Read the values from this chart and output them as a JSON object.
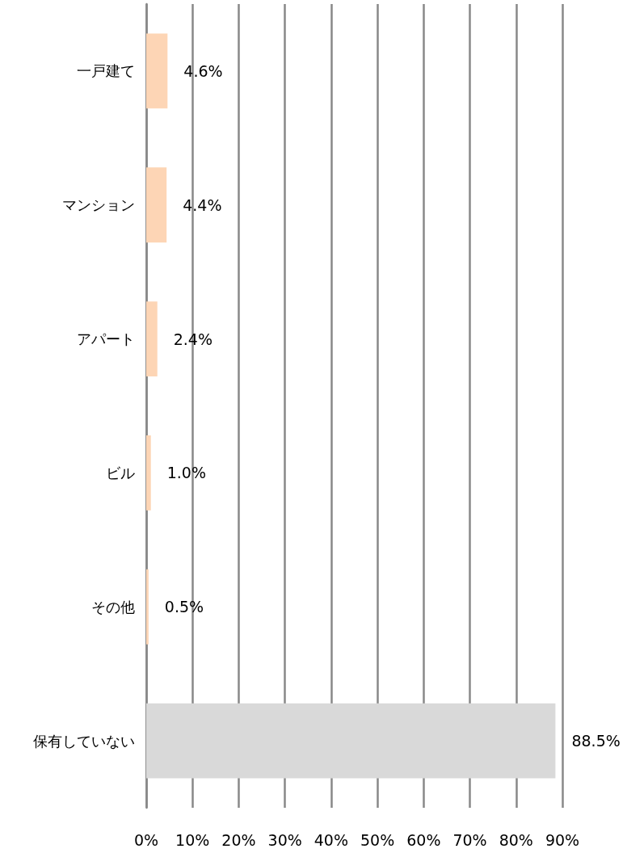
{
  "chart_data": {
    "type": "bar",
    "orientation": "horizontal",
    "categories": [
      "一戸建て",
      "マンション",
      "アパート",
      "ビル",
      "その他",
      "保有していない"
    ],
    "values": [
      4.6,
      4.4,
      2.4,
      1.0,
      0.5,
      88.5
    ],
    "colors": [
      "#fdd5b5",
      "#fdd5b5",
      "#fdd5b5",
      "#fdd5b5",
      "#fdd5b5",
      "#d9d9d9"
    ],
    "value_labels": [
      "4.6%",
      "4.4%",
      "2.4%",
      "1.0%",
      "0.5%",
      "88.5%"
    ],
    "xlim": [
      0,
      90
    ],
    "xticks": [
      {
        "value": 0,
        "label": "0%"
      },
      {
        "value": 10,
        "label": "10%"
      },
      {
        "value": 20,
        "label": "20%"
      },
      {
        "value": 30,
        "label": "30%"
      },
      {
        "value": 40,
        "label": "40%"
      },
      {
        "value": 50,
        "label": "50%"
      },
      {
        "value": 60,
        "label": "60%"
      },
      {
        "value": 70,
        "label": "70%"
      },
      {
        "value": 80,
        "label": "80%"
      },
      {
        "value": 90,
        "label": "90%"
      }
    ],
    "grid": "x"
  }
}
